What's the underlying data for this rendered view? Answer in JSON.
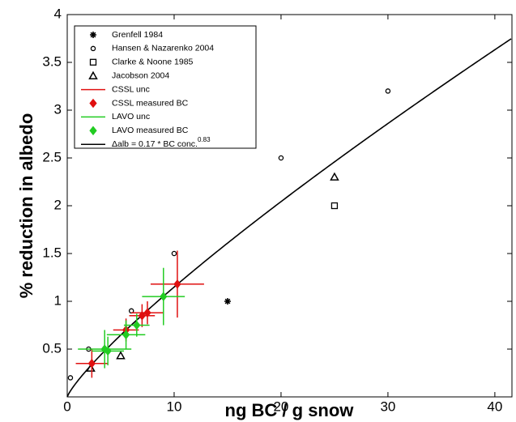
{
  "chart_data": {
    "type": "scatter",
    "xlabel": "ng BC / g snow",
    "ylabel": "% reduction in albedo",
    "xlim": [
      0,
      41.6
    ],
    "ylim": [
      0,
      4
    ],
    "xticks": [
      0,
      10,
      20,
      30,
      40
    ],
    "yticks": [
      0.5,
      1,
      1.5,
      2,
      2.5,
      3,
      3.5,
      4
    ],
    "legend": "upper left",
    "series": [
      {
        "name": "Grenfell 1984",
        "marker": "star",
        "color": "#000000",
        "x": [
          15
        ],
        "values": [
          1.0
        ]
      },
      {
        "name": "Hansen & Nazarenko 2004",
        "marker": "circle",
        "color": "#000000",
        "x": [
          0.3,
          2,
          6,
          10,
          20,
          30
        ],
        "values": [
          0.2,
          0.5,
          0.9,
          1.5,
          2.5,
          3.2
        ]
      },
      {
        "name": "Clarke & Noone 1985",
        "marker": "square",
        "color": "#000000",
        "x": [
          25
        ],
        "values": [
          2.0
        ]
      },
      {
        "name": "Jacobson 2004",
        "marker": "triangle",
        "color": "#000000",
        "x": [
          25,
          5,
          2.2
        ],
        "values": [
          2.3,
          0.43,
          0.3
        ]
      },
      {
        "name": "CSSL measured BC",
        "error_name": "CSSL unc",
        "marker": "diamond",
        "color": "#e01010",
        "x": [
          2.3,
          5.5,
          7.0,
          7.5,
          10.3
        ],
        "values": [
          0.35,
          0.7,
          0.85,
          0.88,
          1.18
        ],
        "x_err": [
          1.5,
          1.2,
          1.2,
          1.5,
          2.5
        ],
        "y_err": [
          0.15,
          0.12,
          0.12,
          0.12,
          0.35
        ]
      },
      {
        "name": "LAVO measured BC",
        "error_name": "LAVO unc",
        "marker": "diamond",
        "color": "#22cc22",
        "x": [
          3.5,
          3.8,
          5.5,
          6.5,
          9.0
        ],
        "values": [
          0.5,
          0.48,
          0.65,
          0.75,
          1.05
        ],
        "x_err": [
          2.5,
          1.5,
          1.8,
          1.2,
          2.0
        ],
        "y_err": [
          0.2,
          0.15,
          0.15,
          0.12,
          0.3
        ]
      }
    ],
    "fit": {
      "label": "Δalb = 0.17 * BC conc.",
      "label_exponent": "0.83",
      "a": 0.17,
      "b": 0.83,
      "color": "#000000"
    }
  }
}
